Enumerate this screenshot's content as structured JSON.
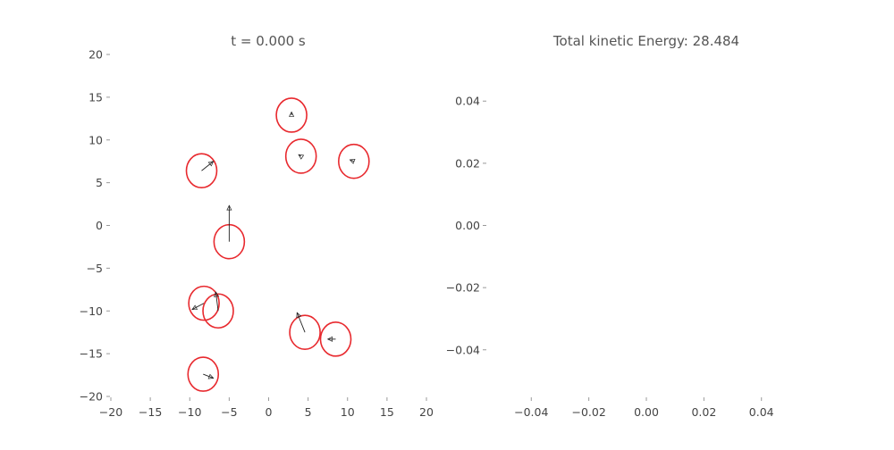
{
  "chart_data": [
    {
      "type": "scatter",
      "title": "t =  0.000 s",
      "xlim": [
        -20,
        20
      ],
      "ylim": [
        -20,
        20
      ],
      "xticks": [
        "−20",
        "−15",
        "−10",
        "−5",
        "0",
        "5",
        "10",
        "15",
        "20"
      ],
      "yticks": [
        "20",
        "15",
        "10",
        "5",
        "0",
        "−5",
        "−10",
        "−15",
        "−20"
      ],
      "marker": "circle-outline",
      "marker_color": "#e8292e",
      "arrow_color": "#222222",
      "particles": [
        {
          "x": 2.9,
          "y": 12.9,
          "vx": 0.0,
          "vy": 0.4
        },
        {
          "x": 4.1,
          "y": 8.1,
          "vx": -0.3,
          "vy": 0.2
        },
        {
          "x": 10.8,
          "y": 7.5,
          "vx": -0.5,
          "vy": 0.2
        },
        {
          "x": -8.5,
          "y": 6.4,
          "vx": 1.5,
          "vy": 1.2
        },
        {
          "x": -5.0,
          "y": -1.9,
          "vx": 0.0,
          "vy": 4.6
        },
        {
          "x": -8.2,
          "y": -9.1,
          "vx": -1.5,
          "vy": -0.8
        },
        {
          "x": -6.4,
          "y": -10.0,
          "vx": -0.3,
          "vy": 2.4
        },
        {
          "x": 4.6,
          "y": -12.5,
          "vx": -1.0,
          "vy": 2.5
        },
        {
          "x": 8.5,
          "y": -13.3,
          "vx": -1.0,
          "vy": 0.0
        },
        {
          "x": -8.3,
          "y": -17.4,
          "vx": 1.3,
          "vy": -0.5
        }
      ]
    },
    {
      "type": "line",
      "title": "Total kinetic Energy: 28.484",
      "xlim": [
        -0.055,
        0.055
      ],
      "ylim": [
        -0.055,
        0.055
      ],
      "xticks": [
        -0.04,
        -0.02,
        0.0,
        0.02,
        0.04
      ],
      "xtick_labels": [
        "−0.04",
        "−0.02",
        "0.00",
        "0.02",
        "0.04"
      ],
      "yticks": [
        0.04,
        0.02,
        0.0,
        -0.02,
        -0.04
      ],
      "ytick_labels": [
        "0.04",
        "0.02",
        "0.00",
        "−0.02",
        "−0.04"
      ],
      "series": []
    }
  ]
}
